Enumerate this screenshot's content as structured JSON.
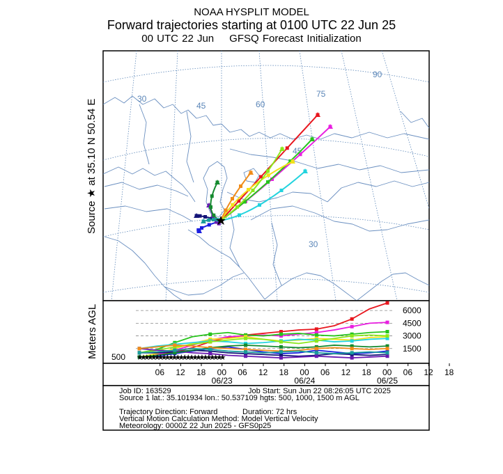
{
  "chart_data": {
    "type": "line",
    "title_line1": "NOAA HYSPLIT MODEL",
    "title_line2": "Forward trajectories starting at 0100 UTC 22 Jun 25",
    "title_line3_left": "00 UTC 22 Jun",
    "title_line3_right": "GFSQ  Forecast Initialization",
    "source_label": "Source ★  at    35.10 N    50.54 E",
    "map_grid_labels": [
      {
        "text": "30",
        "kind": "lon"
      },
      {
        "text": "45",
        "kind": "lon"
      },
      {
        "text": "60",
        "kind": "lon"
      },
      {
        "text": "75",
        "kind": "lon"
      },
      {
        "text": "90",
        "kind": "lon"
      },
      {
        "text": "45",
        "kind": "lat"
      },
      {
        "text": "30",
        "kind": "lat"
      }
    ],
    "ylabel": "Meters AGL",
    "height_ticks": [
      500,
      1500,
      3000,
      4500,
      6000
    ],
    "height_range": [
      0,
      7000
    ],
    "x_time_range_hours": [
      0,
      72
    ],
    "x_tick_labels": [
      "06",
      "12",
      "18",
      "00",
      "06",
      "12",
      "18",
      "00",
      "06",
      "12",
      "18",
      "00",
      "06",
      "12",
      "18"
    ],
    "x_date_labels": [
      "06/23",
      "06/24",
      "06/25"
    ],
    "series": [
      {
        "name": "red",
        "color": "#e8161e",
        "heights": [
          500,
          700,
          1100,
          1600,
          2300,
          2800,
          3100,
          3300,
          3500,
          3700,
          3800,
          4200,
          5000,
          6200,
          6900
        ]
      },
      {
        "name": "magenta",
        "color": "#e81ee0",
        "heights": [
          500,
          800,
          1300,
          1900,
          2500,
          2900,
          3000,
          3100,
          3000,
          3200,
          3400,
          3700,
          4100,
          4500,
          4600
        ]
      },
      {
        "name": "green",
        "color": "#27c41c",
        "heights": [
          1000,
          1400,
          2200,
          2900,
          3200,
          3400,
          3100,
          3000,
          3200,
          3300,
          3100,
          3000,
          3200,
          3400,
          3500
        ]
      },
      {
        "name": "yellow",
        "color": "#f2e21a",
        "heights": [
          500,
          900,
          1500,
          2100,
          2600,
          2700,
          2900,
          2600,
          2400,
          2500,
          2700,
          2600,
          2500,
          2800,
          2900
        ]
      },
      {
        "name": "cyan",
        "color": "#22d3de",
        "heights": [
          1500,
          1800,
          2000,
          2200,
          2400,
          2300,
          2100,
          2200,
          2400,
          2600,
          2500,
          2300,
          2400,
          2600,
          2700
        ]
      },
      {
        "name": "lime",
        "color": "#8ce81c",
        "heights": [
          1000,
          1300,
          1700,
          2000,
          2300,
          2500,
          2700,
          2600,
          2300,
          2100,
          2400,
          2700,
          3000,
          3100,
          3000
        ]
      },
      {
        "name": "blue",
        "color": "#1a1ee0",
        "heights": [
          500,
          600,
          900,
          1200,
          1500,
          1700,
          1400,
          1100,
          900,
          1000,
          1300,
          1100,
          900,
          1000,
          1200
        ]
      },
      {
        "name": "navy",
        "color": "#141478",
        "heights": [
          1000,
          1000,
          1100,
          1300,
          1200,
          1000,
          900,
          800,
          700,
          600,
          700,
          900,
          800,
          700,
          800
        ]
      },
      {
        "name": "purple",
        "color": "#6a1ab0",
        "heights": [
          1500,
          1300,
          1200,
          1000,
          900,
          700,
          600,
          500,
          400,
          500,
          600,
          500,
          400,
          500,
          600
        ]
      },
      {
        "name": "dark-green",
        "color": "#148a2e",
        "heights": [
          500,
          700,
          1000,
          1300,
          1600,
          1800,
          1900,
          1800,
          1700,
          1600,
          1700,
          1900,
          1800,
          1700,
          1800
        ]
      },
      {
        "name": "orange",
        "color": "#f08c1a",
        "heights": [
          1500,
          1700,
          1900,
          1800,
          1600,
          1500,
          1400,
          1300,
          1200,
          1300,
          1500,
          1600,
          1500,
          1400,
          1500
        ]
      },
      {
        "name": "teal",
        "color": "#1a9c9c",
        "heights": [
          1000,
          1100,
          1300,
          1500,
          1400,
          1200,
          1100,
          1000,
          1100,
          1200,
          1000,
          900,
          1000,
          1100,
          1000
        ]
      }
    ]
  },
  "info": {
    "job_id": "Job ID: 163529",
    "job_start": "Job Start: Sun Jun 22 08:26:05 UTC 2025",
    "source_line": "Source 1 lat.: 35.101934  lon.: 50.537109  hgts: 500, 1000, 1500 m AGL",
    "traj_dir": "Trajectory Direction: Forward",
    "duration": "Duration: 72 hrs",
    "vertical_method": "Vertical Motion Calculation Method:      Model Vertical Velocity",
    "meteorology": "Meteorology: 0000Z 22 Jun 2025 - GFS0p25"
  }
}
